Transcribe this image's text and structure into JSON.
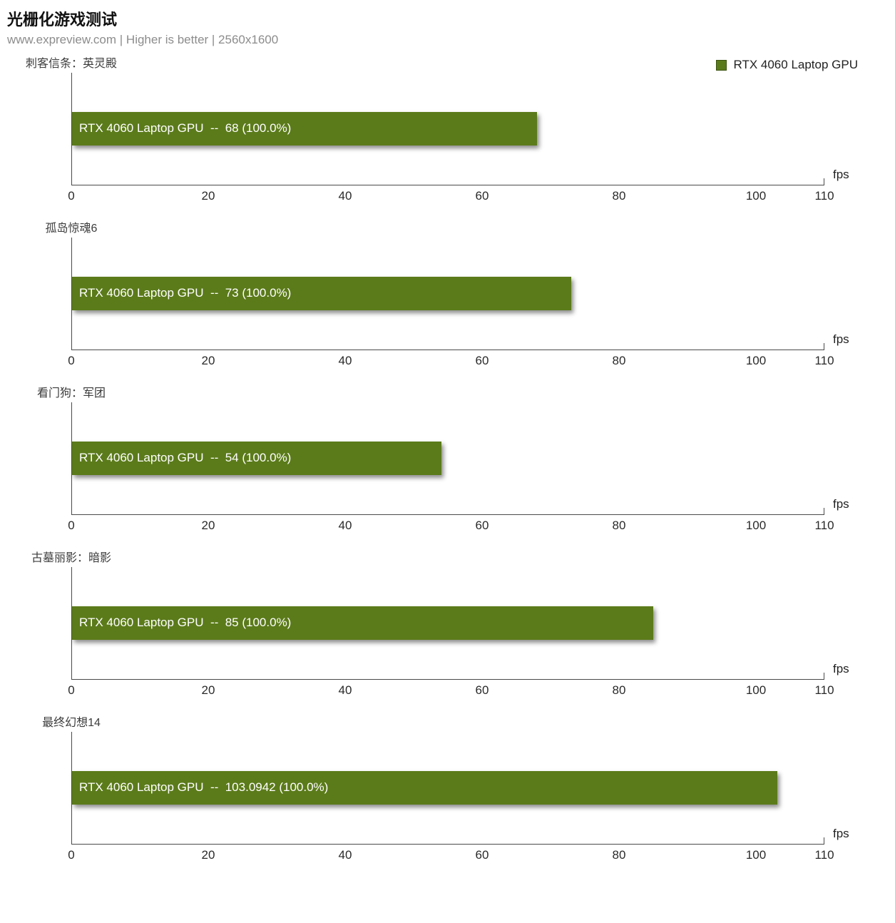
{
  "header": {
    "title": "光栅化游戏测试",
    "subtitle": "www.expreview.com | Higher is better | 2560x1600"
  },
  "legend": {
    "label": "RTX 4060 Laptop GPU",
    "color": "#5b7b1a"
  },
  "chart_data": [
    {
      "type": "bar",
      "title": "刺客信条：英灵殿",
      "series": [
        {
          "name": "RTX 4060 Laptop GPU",
          "value": 68,
          "percent": "100.0%",
          "bar_label": "RTX 4060 Laptop GPU  --  68 (100.0%)"
        }
      ],
      "xlabel": "fps",
      "xlim": [
        0,
        110
      ],
      "xticks": [
        0,
        20,
        40,
        60,
        80,
        100,
        110
      ],
      "bar_color": "#5b7b1a",
      "legend_position": "top-right",
      "grid": false
    },
    {
      "type": "bar",
      "title": "孤岛惊魂6",
      "series": [
        {
          "name": "RTX 4060 Laptop GPU",
          "value": 73,
          "percent": "100.0%",
          "bar_label": "RTX 4060 Laptop GPU  --  73 (100.0%)"
        }
      ],
      "xlabel": "fps",
      "xlim": [
        0,
        110
      ],
      "xticks": [
        0,
        20,
        40,
        60,
        80,
        100,
        110
      ],
      "bar_color": "#5b7b1a",
      "legend_position": "top-right",
      "grid": false
    },
    {
      "type": "bar",
      "title": "看门狗：军团",
      "series": [
        {
          "name": "RTX 4060 Laptop GPU",
          "value": 54,
          "percent": "100.0%",
          "bar_label": "RTX 4060 Laptop GPU  --  54 (100.0%)"
        }
      ],
      "xlabel": "fps",
      "xlim": [
        0,
        110
      ],
      "xticks": [
        0,
        20,
        40,
        60,
        80,
        100,
        110
      ],
      "bar_color": "#5b7b1a",
      "legend_position": "top-right",
      "grid": false
    },
    {
      "type": "bar",
      "title": "古墓丽影：暗影",
      "series": [
        {
          "name": "RTX 4060 Laptop GPU",
          "value": 85,
          "percent": "100.0%",
          "bar_label": "RTX 4060 Laptop GPU  --  85 (100.0%)"
        }
      ],
      "xlabel": "fps",
      "xlim": [
        0,
        110
      ],
      "xticks": [
        0,
        20,
        40,
        60,
        80,
        100,
        110
      ],
      "bar_color": "#5b7b1a",
      "legend_position": "top-right",
      "grid": false
    },
    {
      "type": "bar",
      "title": "最终幻想14",
      "series": [
        {
          "name": "RTX 4060 Laptop GPU",
          "value": 103.0942,
          "percent": "100.0%",
          "bar_label": "RTX 4060 Laptop GPU  --  103.0942 (100.0%)"
        }
      ],
      "xlabel": "fps",
      "xlim": [
        0,
        110
      ],
      "xticks": [
        0,
        20,
        40,
        60,
        80,
        100,
        110
      ],
      "bar_color": "#5b7b1a",
      "legend_position": "top-right",
      "grid": false
    }
  ]
}
